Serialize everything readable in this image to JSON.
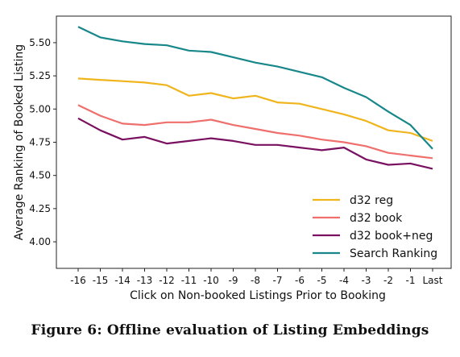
{
  "caption": "Figure 6: Offline evaluation of Listing Embeddings",
  "chart_data": {
    "type": "line",
    "title": "",
    "xlabel": "Click on Non-booked Listings Prior to Booking",
    "ylabel": "Average Ranking of Booked Listing",
    "categories": [
      "-16",
      "-15",
      "-14",
      "-13",
      "-12",
      "-11",
      "-10",
      "-9",
      "-8",
      "-7",
      "-6",
      "-5",
      "-4",
      "-3",
      "-2",
      "-1",
      "Last"
    ],
    "ylim": [
      3.8,
      5.7
    ],
    "yticks": [
      "4.00",
      "4.25",
      "4.50",
      "4.75",
      "5.00",
      "5.25",
      "5.50"
    ],
    "grid": false,
    "legend_position": "lower-right",
    "series": [
      {
        "name": "d32 reg",
        "color": "#f0b51c",
        "values": [
          5.23,
          5.22,
          5.21,
          5.2,
          5.18,
          5.1,
          5.12,
          5.08,
          5.1,
          5.05,
          5.04,
          5.0,
          4.96,
          4.91,
          4.84,
          4.82,
          4.76
        ]
      },
      {
        "name": "d32 book",
        "color": "#ef6f6c",
        "values": [
          5.03,
          4.95,
          4.89,
          4.88,
          4.9,
          4.9,
          4.92,
          4.88,
          4.85,
          4.82,
          4.8,
          4.77,
          4.75,
          4.72,
          4.67,
          4.65,
          4.63
        ]
      },
      {
        "name": "d32 book+neg",
        "color": "#7a1060",
        "values": [
          4.93,
          4.84,
          4.77,
          4.79,
          4.74,
          4.76,
          4.78,
          4.76,
          4.73,
          4.73,
          4.71,
          4.69,
          4.71,
          4.62,
          4.58,
          4.59,
          4.55
        ]
      },
      {
        "name": "Search Ranking",
        "color": "#17878a",
        "values": [
          5.62,
          5.54,
          5.51,
          5.49,
          5.48,
          5.44,
          5.43,
          5.39,
          5.35,
          5.32,
          5.28,
          5.24,
          5.16,
          5.09,
          4.98,
          4.88,
          4.7
        ]
      }
    ]
  }
}
